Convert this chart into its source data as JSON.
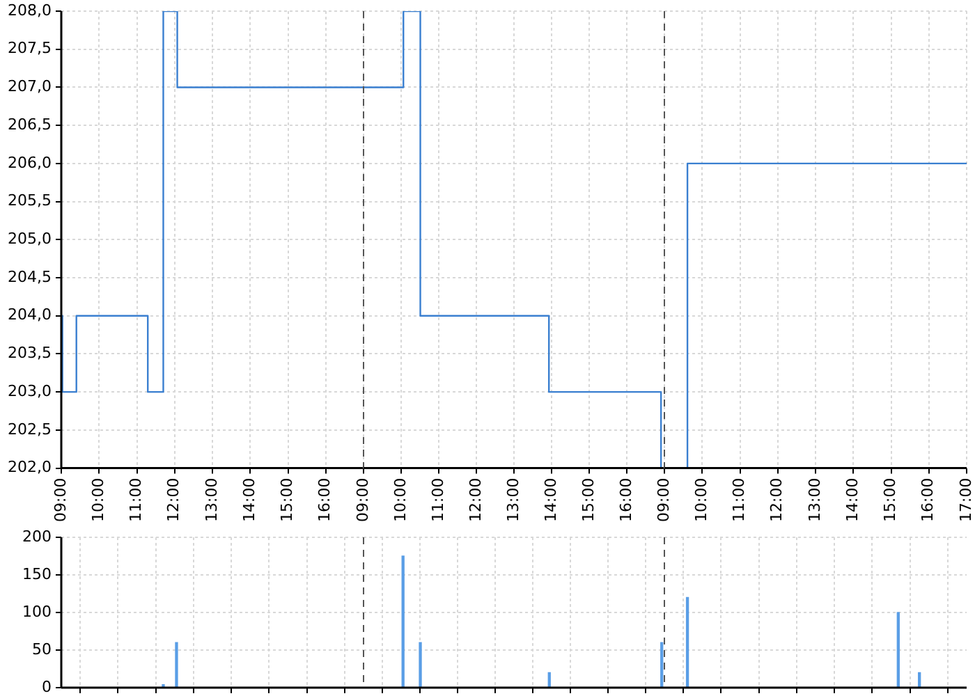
{
  "chart_data": [
    {
      "type": "step",
      "x": [
        9,
        9.03,
        9.4,
        11.29,
        11.7,
        12.07,
        17
      ],
      "series": [
        {
          "color": "#3a7fd0",
          "values": [
            204,
            203,
            204,
            203,
            208,
            207,
            207
          ]
        }
      ],
      "xlim": [
        9,
        17
      ],
      "xticks": [
        {
          "value": 9,
          "label": "09:00"
        },
        {
          "value": 10,
          "label": "10:00"
        },
        {
          "value": 11,
          "label": "11:00"
        },
        {
          "value": 12,
          "label": "12:00"
        },
        {
          "value": 13,
          "label": "13:00"
        },
        {
          "value": 14,
          "label": "14:00"
        },
        {
          "value": 15,
          "label": "15:00"
        },
        {
          "value": 16,
          "label": "16:00"
        }
      ],
      "ylim": [
        202,
        208
      ],
      "yticks": [
        {
          "value": 202,
          "label": "202,0"
        },
        {
          "value": 202.5,
          "label": "202,5"
        },
        {
          "value": 203,
          "label": "203,0"
        },
        {
          "value": 203.5,
          "label": "203,5"
        },
        {
          "value": 204,
          "label": "204,0"
        },
        {
          "value": 204.5,
          "label": "204,5"
        },
        {
          "value": 205,
          "label": "205,0"
        },
        {
          "value": 205.5,
          "label": "205,5"
        },
        {
          "value": 206,
          "label": "206,0"
        },
        {
          "value": 206.5,
          "label": "206,5"
        },
        {
          "value": 207,
          "label": "207,0"
        },
        {
          "value": 207.5,
          "label": "207,5"
        },
        {
          "value": 208,
          "label": "208,0"
        }
      ],
      "grid": true
    },
    {
      "type": "step",
      "x": [
        9,
        10.06,
        10.51,
        13.93,
        16.91,
        17
      ],
      "series": [
        {
          "color": "#3a7fd0",
          "values": [
            207,
            208,
            204,
            203,
            202,
            202
          ]
        }
      ],
      "xlim": [
        9,
        17
      ],
      "xticks": [
        {
          "value": 9,
          "label": "09:00"
        },
        {
          "value": 10,
          "label": "10:00"
        },
        {
          "value": 11,
          "label": "11:00"
        },
        {
          "value": 12,
          "label": "12:00"
        },
        {
          "value": 13,
          "label": "13:00"
        },
        {
          "value": 14,
          "label": "14:00"
        },
        {
          "value": 15,
          "label": "15:00"
        },
        {
          "value": 16,
          "label": "16:00"
        }
      ],
      "ylim": [
        202,
        208
      ],
      "yticks": [
        {
          "value": 202,
          "label": null
        },
        {
          "value": 202.5,
          "label": null
        },
        {
          "value": 203,
          "label": null
        },
        {
          "value": 203.5,
          "label": null
        },
        {
          "value": 204,
          "label": null
        },
        {
          "value": 204.5,
          "label": null
        },
        {
          "value": 205,
          "label": null
        },
        {
          "value": 205.5,
          "label": null
        },
        {
          "value": 206,
          "label": null
        },
        {
          "value": 206.5,
          "label": null
        },
        {
          "value": 207,
          "label": null
        },
        {
          "value": 207.5,
          "label": null
        },
        {
          "value": 208,
          "label": null
        }
      ],
      "grid": true,
      "tick_labels": "x"
    },
    {
      "type": "step",
      "x": [
        9,
        9.61,
        17
      ],
      "series": [
        {
          "color": "#3a7fd0",
          "values": [
            202,
            206,
            206
          ]
        }
      ],
      "xlim": [
        9,
        17
      ],
      "xticks": [
        {
          "value": 9,
          "label": "09:00"
        },
        {
          "value": 10,
          "label": "10:00"
        },
        {
          "value": 11,
          "label": "11:00"
        },
        {
          "value": 12,
          "label": "12:00"
        },
        {
          "value": 13,
          "label": "13:00"
        },
        {
          "value": 14,
          "label": "14:00"
        },
        {
          "value": 15,
          "label": "15:00"
        },
        {
          "value": 16,
          "label": "16:00"
        },
        {
          "value": 17,
          "label": "17:00"
        }
      ],
      "ylim": [
        202,
        208
      ],
      "yticks": [
        {
          "value": 202,
          "label": null
        },
        {
          "value": 202.5,
          "label": null
        },
        {
          "value": 203,
          "label": null
        },
        {
          "value": 203.5,
          "label": null
        },
        {
          "value": 204,
          "label": null
        },
        {
          "value": 204.5,
          "label": null
        },
        {
          "value": 205,
          "label": null
        },
        {
          "value": 205.5,
          "label": null
        },
        {
          "value": 206,
          "label": null
        },
        {
          "value": 206.5,
          "label": null
        },
        {
          "value": 207,
          "label": null
        },
        {
          "value": 207.5,
          "label": null
        },
        {
          "value": 208,
          "label": null
        }
      ],
      "grid": true,
      "tick_labels": "x"
    },
    {
      "type": "bar",
      "x": [
        11.7,
        12.05
      ],
      "series": [
        {
          "color": "#5a9ee6",
          "values": [
            4,
            60
          ]
        }
      ],
      "xlim": [
        9,
        17
      ],
      "xticks": [
        {
          "value": 9,
          "label": null
        },
        {
          "value": 10,
          "label": null
        },
        {
          "value": 11,
          "label": null
        },
        {
          "value": 12,
          "label": null
        },
        {
          "value": 13,
          "label": null
        },
        {
          "value": 14,
          "label": null
        },
        {
          "value": 15,
          "label": null
        },
        {
          "value": 16,
          "label": null
        }
      ],
      "ylim": [
        0,
        200
      ],
      "yticks": [
        0,
        50,
        100,
        150,
        200
      ],
      "grid": true,
      "tick_labels": "y"
    },
    {
      "type": "bar",
      "x": [
        10.05,
        10.51,
        13.94,
        16.93
      ],
      "series": [
        {
          "color": "#5a9ee6",
          "values": [
            175,
            60,
            20,
            60
          ]
        }
      ],
      "xlim": [
        9,
        17
      ],
      "xticks": [
        {
          "value": 9,
          "label": null
        },
        {
          "value": 10,
          "label": null
        },
        {
          "value": 11,
          "label": null
        },
        {
          "value": 12,
          "label": null
        },
        {
          "value": 13,
          "label": null
        },
        {
          "value": 14,
          "label": null
        },
        {
          "value": 15,
          "label": null
        },
        {
          "value": 16,
          "label": null
        }
      ],
      "ylim": [
        0,
        200
      ],
      "yticks": [
        {
          "value": 0,
          "label": null
        },
        {
          "value": 50,
          "label": null
        },
        {
          "value": 100,
          "label": null
        },
        {
          "value": 150,
          "label": null
        },
        {
          "value": 200,
          "label": null
        }
      ],
      "grid": true,
      "tick_labels": false
    },
    {
      "type": "bar",
      "x": [
        9.61,
        15.19,
        15.75
      ],
      "series": [
        {
          "color": "#5a9ee6",
          "values": [
            120,
            100,
            20
          ]
        }
      ],
      "xlim": [
        9,
        17
      ],
      "xticks": [
        {
          "value": 9,
          "label": null
        },
        {
          "value": 10,
          "label": null
        },
        {
          "value": 11,
          "label": null
        },
        {
          "value": 12,
          "label": null
        },
        {
          "value": 13,
          "label": null
        },
        {
          "value": 14,
          "label": null
        },
        {
          "value": 15,
          "label": null
        },
        {
          "value": 16,
          "label": null
        },
        {
          "value": 17,
          "label": null
        }
      ],
      "ylim": [
        0,
        200
      ],
      "yticks": [
        {
          "value": 0,
          "label": null
        },
        {
          "value": 50,
          "label": null
        },
        {
          "value": 100,
          "label": null
        },
        {
          "value": 150,
          "label": null
        },
        {
          "value": 200,
          "label": null
        }
      ],
      "grid": true,
      "tick_labels": false
    }
  ]
}
